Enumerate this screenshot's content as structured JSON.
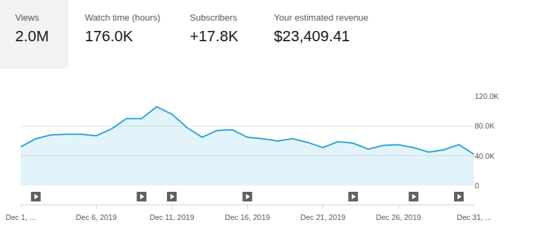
{
  "metrics": [
    {
      "label": "Views",
      "value": "2.0M"
    },
    {
      "label": "Watch time (hours)",
      "value": "176.0K"
    },
    {
      "label": "Subscribers",
      "value": "+17.8K"
    },
    {
      "label": "Your estimated revenue",
      "value": "$23,409.41"
    }
  ],
  "chart_data": {
    "type": "area",
    "categories": [
      "Dec 1, ...",
      null,
      null,
      null,
      null,
      "Dec 6, 2019",
      null,
      null,
      null,
      null,
      "Dec 11, 2019",
      null,
      null,
      null,
      null,
      "Dec 16, 2019",
      null,
      null,
      null,
      null,
      "Dec 21, 2019",
      null,
      null,
      null,
      null,
      "Dec 26, 2019",
      null,
      null,
      null,
      null,
      "Dec 31, ..."
    ],
    "values": [
      52000,
      63000,
      68000,
      69000,
      69000,
      67000,
      76000,
      90000,
      90000,
      106000,
      96000,
      78000,
      65000,
      74000,
      75000,
      65000,
      63000,
      60000,
      63000,
      58000,
      51000,
      59000,
      57000,
      49000,
      54000,
      55000,
      51000,
      45000,
      48000,
      55000,
      42000
    ],
    "color": "#29a3d6",
    "ylim": [
      0,
      120000
    ],
    "yticks": [
      0,
      {
        "value": 40000,
        "label": "40.0K"
      },
      {
        "value": 80000,
        "label": "80.0K"
      },
      {
        "value": 120000,
        "label": "120.0K"
      }
    ],
    "grid": true,
    "uploads": [
      1,
      8,
      10,
      15,
      22,
      26,
      29
    ]
  }
}
